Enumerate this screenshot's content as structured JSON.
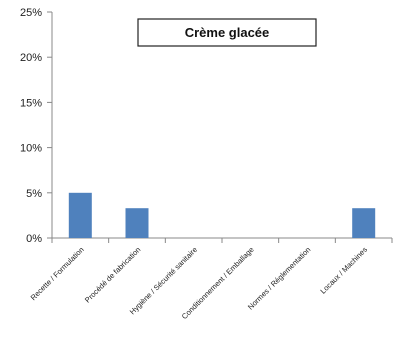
{
  "chart_data": {
    "type": "bar",
    "title": "Crème glacée",
    "categories": [
      "Recette / Formulation",
      "Procédé de fabrication",
      "Hygiène / Sécurité sanitaire",
      "Conditionnement / Emballage",
      "Normes / Réglementation",
      "Locaux / Machines"
    ],
    "values": [
      5,
      3.3,
      0,
      0,
      0,
      3.3
    ],
    "y_ticks": [
      "0%",
      "5%",
      "10%",
      "15%",
      "20%",
      "25%"
    ],
    "ylim": [
      0,
      25
    ],
    "xlabel": "",
    "ylabel": "",
    "grid": false,
    "legend": "none",
    "bar_color": "#4f81bd"
  }
}
